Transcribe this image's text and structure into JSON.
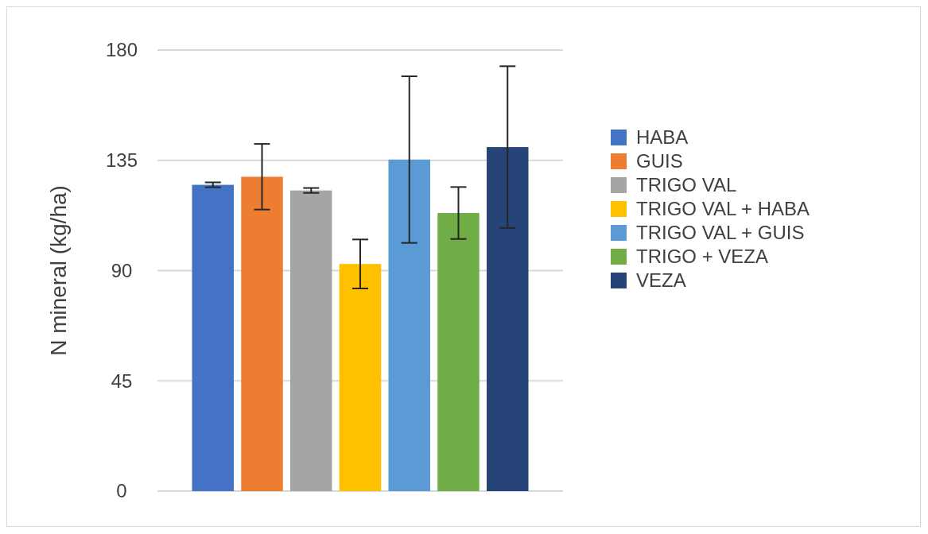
{
  "chart_data": {
    "type": "bar",
    "ylabel": "N mineral (kg/ha)",
    "categories": [
      null
    ],
    "ylim": [
      0,
      180
    ],
    "yticks": [
      0,
      45,
      90,
      135,
      180
    ],
    "grid": "y",
    "legend": "right",
    "tick_labels": "y",
    "series": [
      {
        "name": "HABA",
        "color": "#4472c4",
        "values": [
          125
        ],
        "errors": [
          1
        ]
      },
      {
        "name": "GUIS",
        "color": "#ed7d31",
        "values": [
          128.3
        ],
        "errors": [
          13.4
        ]
      },
      {
        "name": "TRIGO VAL",
        "color": "#a5a5a5",
        "values": [
          122.7
        ],
        "errors": [
          1
        ]
      },
      {
        "name": "TRIGO VAL + HABA",
        "color": "#ffc000",
        "values": [
          92.7
        ],
        "errors": [
          10
        ]
      },
      {
        "name": "TRIGO VAL + GUIS",
        "color": "#5b9bd5",
        "values": [
          135.3
        ],
        "errors": [
          34
        ]
      },
      {
        "name": "TRIGO + VEZA",
        "color": "#70ad47",
        "values": [
          113.5
        ],
        "errors": [
          10.6
        ]
      },
      {
        "name": "VEZA",
        "color": "#264478",
        "values": [
          140.4
        ],
        "errors": [
          33
        ]
      }
    ]
  }
}
